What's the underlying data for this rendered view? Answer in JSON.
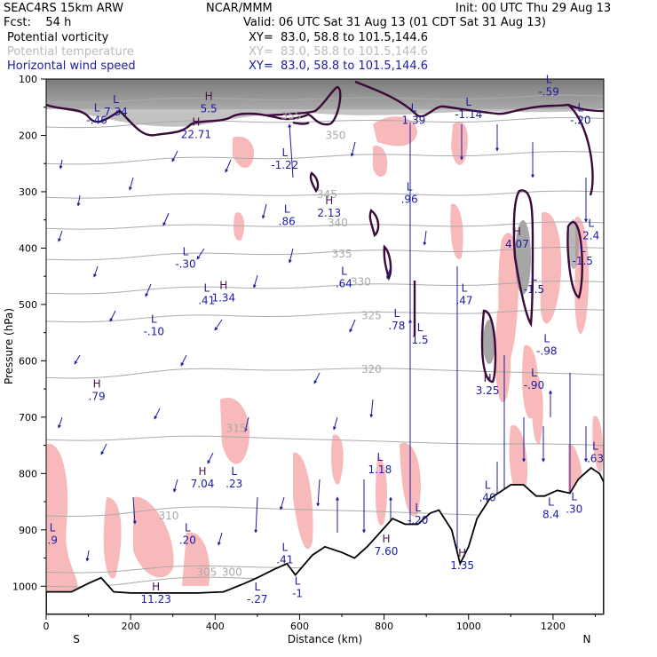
{
  "header": {
    "model": "SEAC4RS 15km ARW",
    "forecast": "Fcst:    54 h",
    "center": "NCAR/MMM",
    "init": "Init: 00 UTC Thu 29 Aug 13",
    "valid": "Valid: 06 UTC Sat 31 Aug 13 (01 CDT Sat 31 Aug 13)",
    "fields": [
      {
        "name": "Potential vorticity",
        "xy": "XY=  83.0, 58.8 to 101.5,144.6",
        "color": "#000000"
      },
      {
        "name": "Potential temperature",
        "xy": "XY=  83.0, 58.8 to 101.5,144.6",
        "color": "#bbbbbb"
      },
      {
        "name": "Horizontal wind speed",
        "xy": "XY=  83.0, 58.8 to 101.5,144.6",
        "color": "#1c1ca0"
      }
    ]
  },
  "chart_data": {
    "type": "cross-section",
    "xlabel": "Distance (km)",
    "ylabel": "Pressure (hPa)",
    "xlim": [
      0,
      1320
    ],
    "ylim": [
      1050,
      100
    ],
    "x_ticks": [
      0,
      200,
      400,
      600,
      800,
      1000,
      1200
    ],
    "y_ticks": [
      100,
      200,
      300,
      400,
      500,
      600,
      700,
      800,
      900,
      1000
    ],
    "x_tick_labels": [
      "0",
      "200",
      "400",
      "600",
      "800",
      "1000",
      "1200"
    ],
    "y_tick_labels": [
      "100",
      "200",
      "300",
      "400",
      "500",
      "600",
      "700",
      "800",
      "900",
      "1000"
    ],
    "endpoint_labels": {
      "left": "S",
      "right": "N"
    },
    "theta_isentropes": [
      {
        "label": "300",
        "p": [
          1000,
          985,
          995,
          1000
        ]
      },
      {
        "label": "305",
        "p": [
          975,
          965,
          970,
          975
        ]
      },
      {
        "label": "310",
        "p": [
          875,
          860,
          870,
          880
        ]
      },
      {
        "label": "315",
        "p": [
          740,
          735,
          745,
          750
        ]
      },
      {
        "label": "320",
        "p": [
          630,
          615,
          615,
          625
        ]
      },
      {
        "label": "325",
        "p": [
          530,
          520,
          515,
          510
        ]
      },
      {
        "label": "330",
        "p": [
          480,
          470,
          465,
          460
        ]
      },
      {
        "label": "335",
        "p": [
          420,
          410,
          405,
          400
        ]
      },
      {
        "label": "340",
        "p": [
          365,
          360,
          360,
          355
        ]
      },
      {
        "label": "345",
        "p": [
          310,
          305,
          305,
          300
        ]
      },
      {
        "label": "350",
        "p": [
          250,
          240,
          235,
          230
        ]
      },
      {
        "label": "355",
        "p": [
          185,
          175,
          175,
          170
        ]
      },
      {
        "label": "360",
        "p": [
          140,
          135,
          135,
          130
        ]
      }
    ],
    "theta_label_positions": [
      {
        "label": "300",
        "x": 440,
        "p": 975
      },
      {
        "label": "305",
        "x": 380,
        "p": 975
      },
      {
        "label": "310",
        "x": 290,
        "p": 875
      },
      {
        "label": "315",
        "x": 450,
        "p": 720
      },
      {
        "label": "320",
        "x": 770,
        "p": 615
      },
      {
        "label": "325",
        "x": 770,
        "p": 520
      },
      {
        "label": "330",
        "x": 745,
        "p": 460
      },
      {
        "label": "335",
        "x": 700,
        "p": 410
      },
      {
        "label": "340",
        "x": 690,
        "p": 355
      },
      {
        "label": "345",
        "x": 665,
        "p": 305
      },
      {
        "label": "350",
        "x": 685,
        "p": 200
      },
      {
        "label": "355",
        "x": 580,
        "p": 165
      }
    ],
    "extrema": [
      {
        "kind": "L",
        "value": "-.46",
        "x": 120,
        "p": 170
      },
      {
        "kind": "L",
        "value": "7.34",
        "x": 165,
        "p": 155
      },
      {
        "kind": "H",
        "value": "22.71",
        "x": 355,
        "p": 195
      },
      {
        "kind": "H",
        "value": "5.5",
        "x": 385,
        "p": 150
      },
      {
        "kind": "L",
        "value": "-1.22",
        "x": 565,
        "p": 250
      },
      {
        "kind": "L",
        "value": ".86",
        "x": 570,
        "p": 350
      },
      {
        "kind": "H",
        "value": "2.13",
        "x": 670,
        "p": 335
      },
      {
        "kind": "L",
        "value": ".96",
        "x": 860,
        "p": 310
      },
      {
        "kind": "L",
        "value": "-.30",
        "x": 330,
        "p": 425
      },
      {
        "kind": "L",
        "value": ".41",
        "x": 380,
        "p": 490
      },
      {
        "kind": "H",
        "value": "1.34",
        "x": 420,
        "p": 485
      },
      {
        "kind": "L",
        "value": ".64",
        "x": 705,
        "p": 460
      },
      {
        "kind": "L",
        "value": ".78",
        "x": 830,
        "p": 535
      },
      {
        "kind": "L",
        "value": "1.5",
        "x": 885,
        "p": 560
      },
      {
        "kind": "L",
        "value": ".47",
        "x": 990,
        "p": 490
      },
      {
        "kind": "H",
        "value": "4.07",
        "x": 1115,
        "p": 390
      },
      {
        "kind": "L",
        "value": "-1.5",
        "x": 1155,
        "p": 470
      },
      {
        "kind": "L",
        "value": "-.98",
        "x": 1185,
        "p": 580
      },
      {
        "kind": "L",
        "value": "-.90",
        "x": 1155,
        "p": 640
      },
      {
        "kind": "H",
        "value": "3.25",
        "x": 1045,
        "p": 650
      },
      {
        "kind": "L",
        "value": "-.10",
        "x": 255,
        "p": 545
      },
      {
        "kind": "H",
        "value": ".79",
        "x": 120,
        "p": 660
      },
      {
        "kind": "H",
        "value": "7.04",
        "x": 370,
        "p": 815
      },
      {
        "kind": "L",
        "value": ".23",
        "x": 445,
        "p": 815
      },
      {
        "kind": "L",
        "value": "1.18",
        "x": 790,
        "p": 790
      },
      {
        "kind": "L",
        "value": ".40",
        "x": 1045,
        "p": 840
      },
      {
        "kind": "L",
        "value": "-.20",
        "x": 880,
        "p": 880
      },
      {
        "kind": "H",
        "value": "7.60",
        "x": 805,
        "p": 935
      },
      {
        "kind": "L",
        "value": ".20",
        "x": 335,
        "p": 915
      },
      {
        "kind": "L",
        "value": ".41",
        "x": 565,
        "p": 950
      },
      {
        "kind": "H",
        "value": "11.23",
        "x": 260,
        "p": 1020
      },
      {
        "kind": "L",
        "value": "-.27",
        "x": 500,
        "p": 1020
      },
      {
        "kind": "H",
        "value": "1.35",
        "x": 985,
        "p": 960
      },
      {
        "kind": "L",
        "value": ".30",
        "x": 1250,
        "p": 860
      },
      {
        "kind": "L",
        "value": "2.4",
        "x": 1290,
        "p": 375
      },
      {
        "kind": "L",
        "value": "-1.5",
        "x": 1270,
        "p": 420
      },
      {
        "kind": "L",
        "value": "-.20",
        "x": 1265,
        "p": 170
      },
      {
        "kind": "L",
        "value": "-.59",
        "x": 1190,
        "p": 120
      },
      {
        "kind": "L",
        "value": "-1.14",
        "x": 1000,
        "p": 160
      },
      {
        "kind": "L",
        "value": "1.39",
        "x": 870,
        "p": 170
      },
      {
        "kind": "L",
        "value": "-1",
        "x": 595,
        "p": 1010
      },
      {
        "kind": "L",
        "value": ".9",
        "x": 15,
        "p": 915
      },
      {
        "kind": "L",
        "value": ".63",
        "x": 1300,
        "p": 770
      },
      {
        "kind": "L",
        "value": "8.4",
        "x": 1195,
        "p": 870
      }
    ],
    "terrain_surface_p": [
      [
        0,
        1010
      ],
      [
        60,
        1010
      ],
      [
        100,
        995
      ],
      [
        130,
        985
      ],
      [
        160,
        1010
      ],
      [
        200,
        1012
      ],
      [
        280,
        1012
      ],
      [
        360,
        1012
      ],
      [
        420,
        1010
      ],
      [
        470,
        995
      ],
      [
        500,
        985
      ],
      [
        540,
        970
      ],
      [
        570,
        960
      ],
      [
        590,
        980
      ],
      [
        630,
        945
      ],
      [
        660,
        930
      ],
      [
        700,
        940
      ],
      [
        730,
        950
      ],
      [
        760,
        930
      ],
      [
        790,
        905
      ],
      [
        820,
        880
      ],
      [
        850,
        890
      ],
      [
        880,
        890
      ],
      [
        910,
        870
      ],
      [
        930,
        865
      ],
      [
        960,
        900
      ],
      [
        980,
        960
      ],
      [
        1000,
        930
      ],
      [
        1020,
        880
      ],
      [
        1050,
        845
      ],
      [
        1080,
        830
      ],
      [
        1100,
        820
      ],
      [
        1130,
        820
      ],
      [
        1160,
        840
      ],
      [
        1180,
        840
      ],
      [
        1210,
        830
      ],
      [
        1240,
        835
      ],
      [
        1260,
        810
      ],
      [
        1290,
        790
      ],
      [
        1310,
        800
      ],
      [
        1320,
        815
      ]
    ]
  }
}
